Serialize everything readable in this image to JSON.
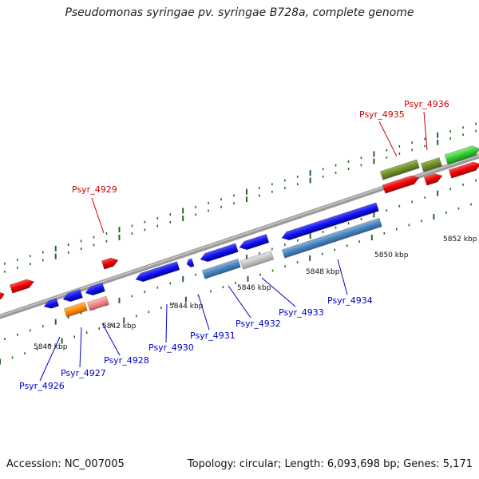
{
  "title": "Pseudomonas syringae pv. syringae B728a, complete genome",
  "footer": {
    "accession": "Accession: NC_007005",
    "topology": "Topology: circular; Length: 6,093,698 bp; Genes: 5,171"
  },
  "colors": {
    "label_forward": "#cc0000",
    "label_reverse": "#0000cc",
    "tick": "#226622",
    "backbone": "#808080"
  },
  "scale_labels": [
    "5840 kbp",
    "5842 kbp",
    "5844 kbp",
    "5846 kbp",
    "5848 kbp",
    "5850 kbp",
    "5852 kbp"
  ],
  "genes": [
    {
      "name": "Psyr_4926",
      "color": "#0000cc"
    },
    {
      "name": "Psyr_4927",
      "color": "#0000cc"
    },
    {
      "name": "Psyr_4928",
      "color": "#0000cc"
    },
    {
      "name": "Psyr_4929",
      "color": "#cc0000"
    },
    {
      "name": "Psyr_4930",
      "color": "#0000cc"
    },
    {
      "name": "Psyr_4931",
      "color": "#0000cc"
    },
    {
      "name": "Psyr_4932",
      "color": "#0000cc"
    },
    {
      "name": "Psyr_4933",
      "color": "#0000cc"
    },
    {
      "name": "Psyr_4934",
      "color": "#0000cc"
    },
    {
      "name": "Psyr_4935",
      "color": "#cc0000"
    },
    {
      "name": "Psyr_4936",
      "color": "#cc0000"
    }
  ]
}
